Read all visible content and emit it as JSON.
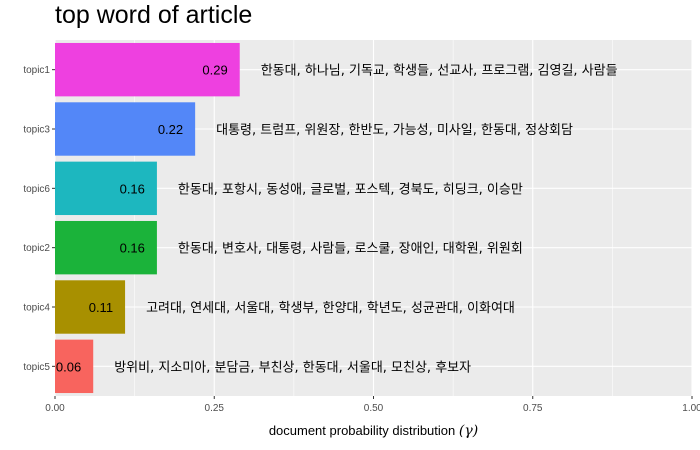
{
  "chart_data": {
    "type": "bar",
    "orientation": "horizontal",
    "title": "top word of article",
    "xlabel": "document probability distribution",
    "xlabel_symbol": "(γ)",
    "ylabel": "",
    "xlim": [
      0,
      1
    ],
    "x_ticks": [
      "0.00",
      "0.25",
      "0.50",
      "0.75",
      "1.00"
    ],
    "grid": true,
    "legend": "none",
    "categories": [
      "topic1",
      "topic3",
      "topic6",
      "topic2",
      "topic4",
      "topic5"
    ],
    "values": [
      0.29,
      0.22,
      0.16,
      0.16,
      0.11,
      0.06
    ],
    "value_labels": [
      "0.29",
      "0.22",
      "0.16",
      "0.16",
      "0.11",
      "0.06"
    ],
    "bar_colors": [
      "#EE40E0",
      "#5387F8",
      "#1DB7BF",
      "#1BB33A",
      "#A89000",
      "#F8645E"
    ],
    "word_labels": [
      "한동대, 하나님, 기독교, 학생들, 선교사, 프로그램, 김영길, 사람들",
      "대통령, 트럼프, 위원장, 한반도, 가능성, 미사일, 한동대, 정상회담",
      "한동대, 포항시, 동성애, 글로벌, 포스텍, 경북도, 히딩크, 이승만",
      "한동대, 변호사, 대통령, 사람들, 로스쿨, 장애인, 대학원, 위원회",
      "고려대, 연세대, 서울대, 학생부, 한양대, 학년도, 성균관대, 이화여대",
      "방위비, 지소미아, 분담금, 부친상, 한동대, 서울대, 모친상, 후보자"
    ],
    "panel_background": "#EBEBEB",
    "gridline_color": "#FFFFFF"
  }
}
